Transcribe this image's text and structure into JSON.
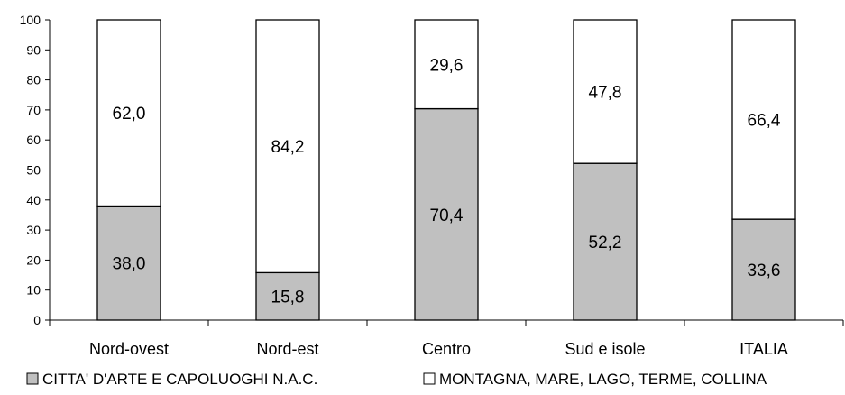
{
  "chart_data": {
    "type": "bar",
    "stacked": true,
    "categories": [
      "Nord-ovest",
      "Nord-est",
      "Centro",
      "Sud e isole",
      "ITALIA"
    ],
    "series": [
      {
        "name": "CITTA' D'ARTE E CAPOLUOGHI N.A.C.",
        "values": [
          38.0,
          15.8,
          70.4,
          52.2,
          33.6
        ],
        "labels": [
          "38,0",
          "15,8",
          "70,4",
          "52,2",
          "33,6"
        ],
        "color": "#c0c0c0"
      },
      {
        "name": "MONTAGNA, MARE, LAGO, TERME, COLLINA",
        "values": [
          62.0,
          84.2,
          29.6,
          47.8,
          66.4
        ],
        "labels": [
          "62,0",
          "84,2",
          "29,6",
          "47,8",
          "66,4"
        ],
        "color": "#ffffff"
      }
    ],
    "yticks": [
      "0",
      "10",
      "20",
      "30",
      "40",
      "50",
      "60",
      "70",
      "80",
      "90",
      "100"
    ],
    "ylim": [
      0,
      100
    ],
    "grid": false,
    "legend_position": "bottom"
  }
}
